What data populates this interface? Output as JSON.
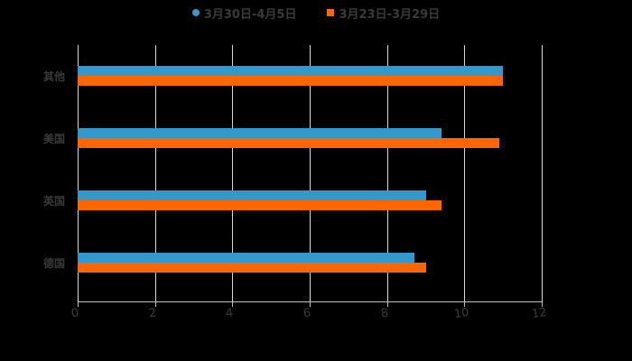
{
  "legend": [
    {
      "label": "3月30日-4月5日",
      "color": "#3399CC",
      "marker": "dot"
    },
    {
      "label": "3月23日-3月29日",
      "color": "#FF6600",
      "marker": "square"
    }
  ],
  "chart_data": {
    "type": "bar",
    "orientation": "horizontal",
    "title": "",
    "xlabel": "",
    "ylabel": "",
    "categories": [
      "其他",
      "美国",
      "英国",
      "德国"
    ],
    "series": [
      {
        "name": "3月30日-4月5日",
        "color": "#3399CC",
        "values": [
          11.0,
          9.4,
          9.0,
          8.7
        ]
      },
      {
        "name": "3月23日-3月29日",
        "color": "#FF6600",
        "values": [
          11.0,
          10.9,
          9.4,
          9.0
        ]
      }
    ],
    "xlim": [
      0,
      12
    ],
    "x_ticks": [
      "0",
      "2",
      "4",
      "6",
      "8",
      "10",
      "12"
    ],
    "grid": true,
    "legend_position": "top",
    "background": "#000000"
  }
}
